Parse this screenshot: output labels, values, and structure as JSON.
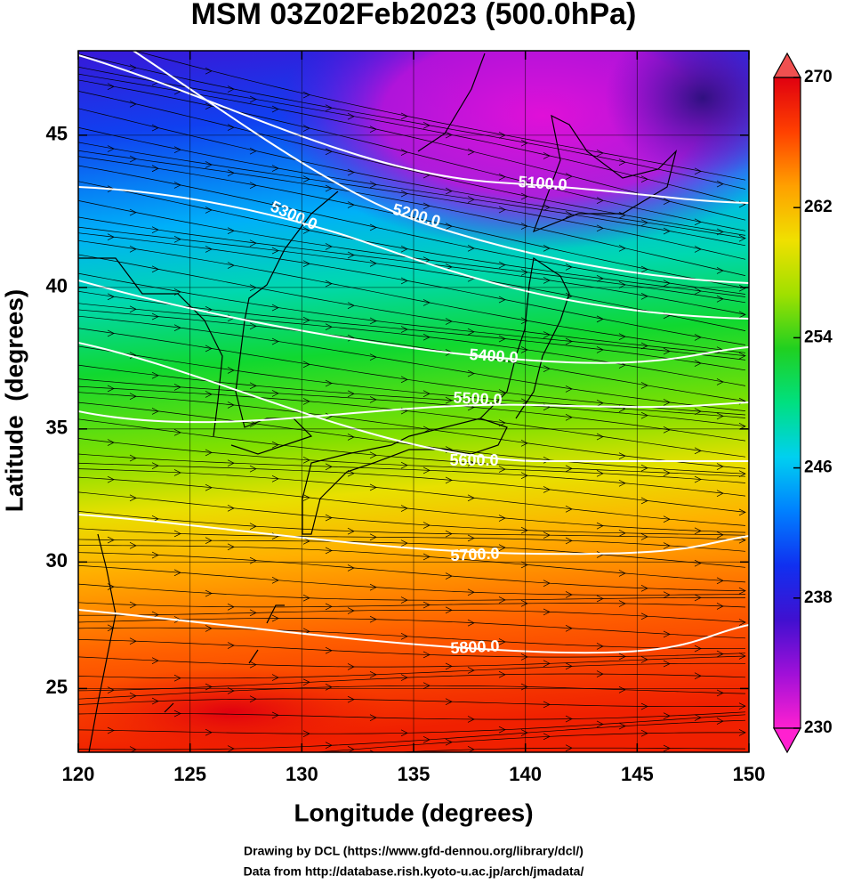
{
  "chart_data": {
    "type": "map",
    "title": "MSM 03Z02Feb2023 (500.0hPa)",
    "x_label": "Longitude (degrees)",
    "y_label": "Latitude  (degrees)",
    "projection": "mercator",
    "xlim": [
      120,
      150
    ],
    "ylim": [
      22.4,
      47.6
    ],
    "xticks": [
      120,
      125,
      130,
      135,
      140,
      145,
      150
    ],
    "yticks": [
      25,
      30,
      35,
      40,
      45
    ],
    "grid": true,
    "colorbar": {
      "lim": [
        230,
        270
      ],
      "ticks": [
        230,
        238,
        246,
        254,
        262,
        270
      ],
      "colors": [
        "#ff20d0",
        "#a010d8",
        "#4010d0",
        "#1030f0",
        "#0080ff",
        "#00d0f0",
        "#00e080",
        "#20d020",
        "#a0e000",
        "#f0e000",
        "#ffa000",
        "#ff4000",
        "#e00010"
      ]
    },
    "contours": [
      {
        "value": 5100,
        "label": "5100.0"
      },
      {
        "value": 5200,
        "label": "5200.0"
      },
      {
        "value": 5300,
        "label": "5300.0"
      },
      {
        "value": 5400,
        "label": "5400.0"
      },
      {
        "value": 5500,
        "label": "5500.0"
      },
      {
        "value": 5600,
        "label": "5600.0"
      },
      {
        "value": 5700,
        "label": "5700.0"
      },
      {
        "value": 5800,
        "label": "5800.0"
      }
    ],
    "credits": [
      "Drawing by DCL (https://www.gfd-dennou.org/library/dcl/)",
      "Data from http://database.rish.kyoto-u.ac.jp/arch/jmadata/"
    ]
  }
}
